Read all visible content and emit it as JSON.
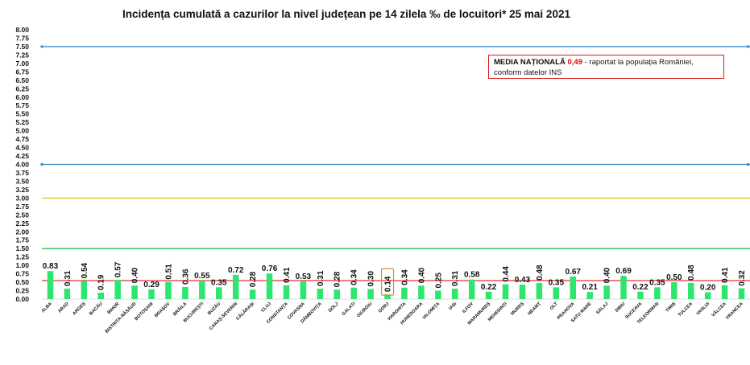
{
  "title": "Incidența cumulată a cazurilor la nivel județean pe 14 zilela ‰ de locuitori*  25 mai 2021",
  "notice": {
    "bold": "MEDIA NAȚIONALĂ",
    "value": "0,49",
    "dash": " - ",
    "text1": "raportat la populația României,",
    "text2": "conform datelor INS"
  },
  "colors": {
    "bar": "#2ee66f",
    "line_blue": "#3b8cc6",
    "line_yellow": "#e2c431",
    "line_green": "#2fbf4f",
    "line_red": "#e53030",
    "highlight_border": "#e08a2b",
    "notice_border": "#d81b1b"
  },
  "chart_data": {
    "type": "bar",
    "title": "Incidența cumulată a cazurilor la nivel județean pe 14 zilela ‰ de locuitori*  25 mai 2021",
    "categories": [
      "ALBA",
      "ARAD",
      "ARGEȘ",
      "BACĂU",
      "BIHOR",
      "BISTRIȚA-NĂSĂUD",
      "BOTOȘANI",
      "BRAȘOV",
      "BRĂILA",
      "BUCUREȘTI",
      "BUZĂU",
      "CARAȘ-SEVERIN",
      "CĂLĂRAȘI",
      "CLUJ",
      "CONSTANȚA",
      "COVASNA",
      "DÂMBOVIȚA",
      "DOLJ",
      "GALAȚI",
      "GIURGIU",
      "GORJ",
      "HARGHITA",
      "HUNEDOARA",
      "IALOMIȚA",
      "IAȘI",
      "ILFOV",
      "MARAMUREȘ",
      "MEHEDINȚI",
      "MUREȘ",
      "NEAMȚ",
      "OLT",
      "PRAHOVA",
      "SATU MARE",
      "SĂLAJ",
      "SIBIU",
      "SUCEAVA",
      "TELEORMAN",
      "TIMIȘ",
      "TULCEA",
      "VASLUI",
      "VÂLCEA",
      "VRANCEA"
    ],
    "values": [
      0.83,
      0.31,
      0.54,
      0.19,
      0.57,
      0.4,
      0.29,
      0.51,
      0.36,
      0.55,
      0.35,
      0.72,
      0.28,
      0.76,
      0.41,
      0.53,
      0.31,
      0.28,
      0.34,
      0.3,
      0.14,
      0.34,
      0.4,
      0.25,
      0.31,
      0.58,
      0.22,
      0.44,
      0.43,
      0.48,
      0.35,
      0.67,
      0.21,
      0.4,
      0.69,
      0.22,
      0.35,
      0.5,
      0.48,
      0.2,
      0.41,
      0.32
    ],
    "labels": [
      "0.83",
      "0.31",
      "0.54",
      "0.19",
      "0.57",
      "0.40",
      "0.29",
      "0.51",
      "0.36",
      "0.55",
      "0.35",
      "0.72",
      "0.28",
      "0.76",
      "0.41",
      "0.53",
      "0.31",
      "0.28",
      "0.34",
      "0.30",
      "0.14",
      "0.34",
      "0.40",
      "0.25",
      "0.31",
      "0.58",
      "0.22",
      "0.44",
      "0.43",
      "0.48",
      "0.35",
      "0.67",
      "0.21",
      "0.40",
      "0.69",
      "0.22",
      "0.35",
      "0.50",
      "0.48",
      "0.20",
      "0.41",
      "0.32"
    ],
    "vertical_labels": [
      false,
      true,
      true,
      true,
      true,
      true,
      false,
      true,
      true,
      false,
      false,
      false,
      true,
      false,
      true,
      false,
      true,
      true,
      true,
      true,
      true,
      true,
      true,
      true,
      true,
      false,
      false,
      true,
      false,
      true,
      false,
      false,
      false,
      true,
      false,
      false,
      false,
      false,
      true,
      false,
      true,
      true
    ],
    "highlighted": "GORJ",
    "ylim": [
      0,
      8.0
    ],
    "yticks": [
      "0.00",
      "0.25",
      "0.50",
      "0.75",
      "1.00",
      "1.25",
      "1.50",
      "1.75",
      "2.00",
      "2.25",
      "2.50",
      "2.75",
      "3.00",
      "3.25",
      "3.50",
      "3.75",
      "4.00",
      "4.25",
      "4.50",
      "4.75",
      "5.00",
      "5.25",
      "5.50",
      "5.75",
      "6.00",
      "6.25",
      "6.50",
      "6.75",
      "7.00",
      "7.25",
      "7.50",
      "7.75",
      "8.00"
    ],
    "reference_lines": [
      {
        "value": 7.5,
        "color": "line_blue",
        "markers": true
      },
      {
        "value": 4.0,
        "color": "line_blue",
        "markers": true
      },
      {
        "value": 3.0,
        "color": "line_yellow",
        "markers": false
      },
      {
        "value": 1.5,
        "color": "line_green",
        "markers": false
      },
      {
        "value": 0.55,
        "color": "line_red",
        "markers": false
      }
    ],
    "grid": false,
    "legend": "none"
  }
}
